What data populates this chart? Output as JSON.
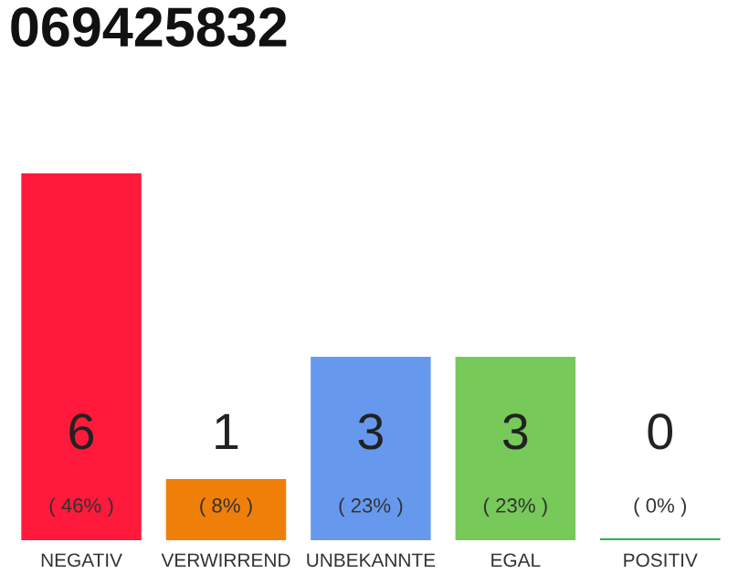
{
  "chart_data": {
    "type": "bar",
    "title": "069425832",
    "categories": [
      "NEGATIV",
      "VERWIRREND",
      "UNBEKANNTE",
      "EGAL",
      "POSITIV"
    ],
    "values": [
      6,
      1,
      3,
      3,
      0
    ],
    "colors": [
      "#ff1a3c",
      "#f07f0a",
      "#6699ee",
      "#77c95a",
      "#2eae4e"
    ],
    "data_labels": true,
    "annotations": [
      "( 46% )",
      "( 8% )",
      "( 23% )",
      "( 23% )",
      "( 0% )"
    ],
    "grid": false,
    "legend": false
  }
}
